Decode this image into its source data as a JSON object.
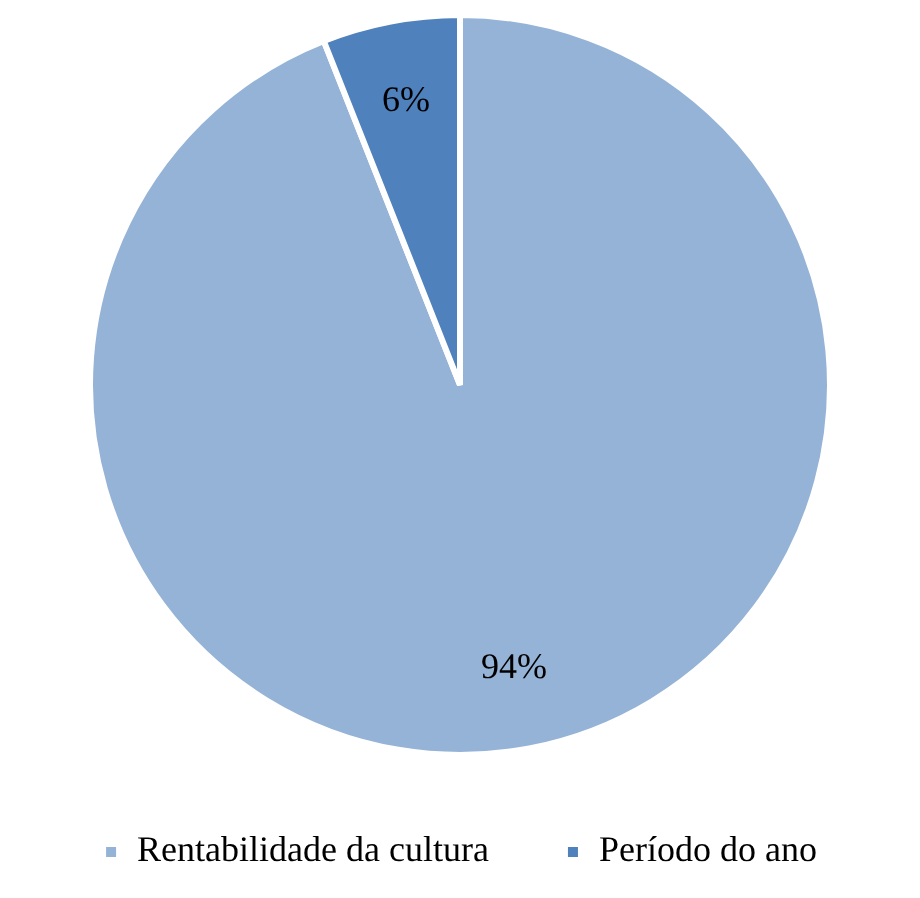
{
  "chart_data": {
    "type": "pie",
    "categories": [
      "Rentabilidade da cultura",
      "Período do ano"
    ],
    "values": [
      94,
      6
    ],
    "colors": [
      "#95b3d7",
      "#4f81bd"
    ],
    "value_labels": [
      "94%",
      "6%"
    ],
    "legend": "bottom"
  }
}
